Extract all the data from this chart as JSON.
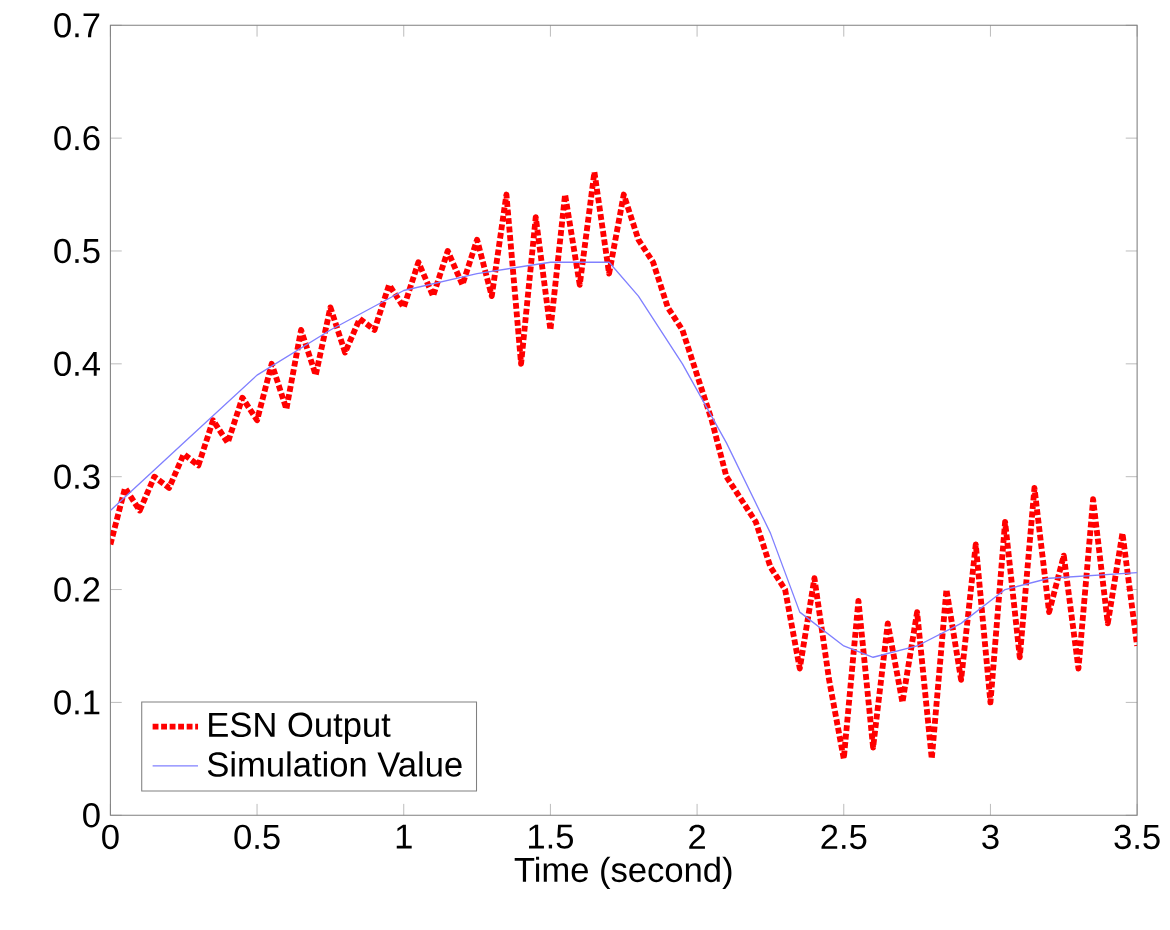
{
  "chart_data": {
    "type": "line",
    "xlabel": "Time (second)",
    "xlim": [
      0,
      3.5
    ],
    "xticks": [
      0,
      0.5,
      1,
      1.5,
      2,
      2.5,
      3,
      3.5
    ],
    "ylim": [
      0,
      0.7
    ],
    "yticks": [
      0,
      0.1,
      0.2,
      0.3,
      0.4,
      0.5,
      0.6,
      0.7
    ],
    "legend": "bottom left",
    "grid": false,
    "series": [
      {
        "name": "ESN Output",
        "color": "#ff0000",
        "line_style": "dotted",
        "x": [
          0,
          0.05,
          0.1,
          0.15,
          0.2,
          0.25,
          0.3,
          0.35,
          0.4,
          0.45,
          0.5,
          0.55,
          0.6,
          0.65,
          0.7,
          0.75,
          0.8,
          0.85,
          0.9,
          0.95,
          1.0,
          1.05,
          1.1,
          1.15,
          1.2,
          1.25,
          1.3,
          1.35,
          1.4,
          1.45,
          1.5,
          1.55,
          1.6,
          1.65,
          1.7,
          1.75,
          1.8,
          1.85,
          1.9,
          1.95,
          2.0,
          2.05,
          2.1,
          2.15,
          2.2,
          2.25,
          2.3,
          2.35,
          2.4,
          2.45,
          2.5,
          2.55,
          2.6,
          2.65,
          2.7,
          2.75,
          2.8,
          2.85,
          2.9,
          2.95,
          3.0,
          3.05,
          3.1,
          3.15,
          3.2,
          3.25,
          3.3,
          3.35,
          3.4,
          3.45,
          3.5
        ],
        "values": [
          0.24,
          0.29,
          0.27,
          0.3,
          0.29,
          0.32,
          0.31,
          0.35,
          0.33,
          0.37,
          0.35,
          0.4,
          0.36,
          0.43,
          0.39,
          0.45,
          0.41,
          0.44,
          0.43,
          0.47,
          0.45,
          0.49,
          0.46,
          0.5,
          0.47,
          0.51,
          0.46,
          0.55,
          0.4,
          0.53,
          0.43,
          0.55,
          0.47,
          0.57,
          0.48,
          0.55,
          0.51,
          0.49,
          0.45,
          0.43,
          0.39,
          0.35,
          0.3,
          0.28,
          0.26,
          0.22,
          0.2,
          0.13,
          0.21,
          0.12,
          0.05,
          0.19,
          0.06,
          0.17,
          0.1,
          0.18,
          0.05,
          0.2,
          0.12,
          0.24,
          0.1,
          0.26,
          0.14,
          0.29,
          0.18,
          0.23,
          0.13,
          0.28,
          0.17,
          0.25,
          0.15
        ]
      },
      {
        "name": "Simulation Value",
        "color": "#8080ff",
        "line_style": "solid",
        "x": [
          0,
          0.25,
          0.5,
          0.75,
          1.0,
          1.25,
          1.5,
          1.7,
          1.8,
          1.95,
          2.1,
          2.25,
          2.35,
          2.5,
          2.6,
          2.75,
          2.9,
          3.05,
          3.2,
          3.5
        ],
        "values": [
          0.27,
          0.33,
          0.39,
          0.43,
          0.465,
          0.48,
          0.49,
          0.49,
          0.46,
          0.4,
          0.33,
          0.25,
          0.18,
          0.15,
          0.14,
          0.15,
          0.17,
          0.2,
          0.21,
          0.215
        ]
      }
    ]
  }
}
